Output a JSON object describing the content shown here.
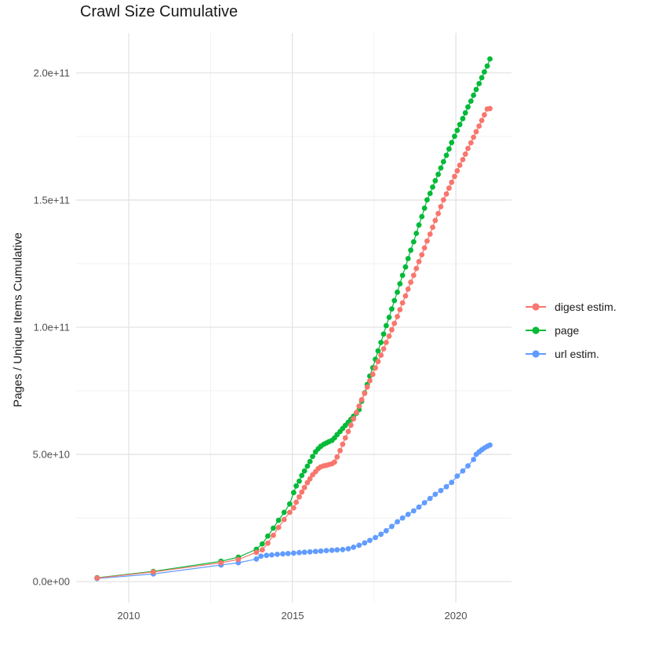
{
  "title": "Crawl Size Cumulative",
  "y_axis": {
    "title": "Pages / Unique Items Cumulative",
    "tick_labels": [
      "0.0e+00",
      "5.0e+10",
      "1.0e+11",
      "1.5e+11",
      "2.0e+11"
    ],
    "tick_values_e9": [
      0,
      50,
      100,
      150,
      200
    ],
    "minor_values_e9": [
      25,
      75,
      125,
      175
    ],
    "range_e9": [
      -8.3,
      215.7
    ]
  },
  "x_axis": {
    "tick_labels": [
      "2010",
      "2015",
      "2020"
    ],
    "tick_values": [
      2010,
      2015,
      2020
    ],
    "minor_values": [
      2012.5,
      2017.5
    ],
    "range": [
      2008.39,
      2021.7
    ]
  },
  "legend": {
    "items": [
      {
        "label": "digest estim.",
        "color": "#F8766D",
        "series": "digest estim."
      },
      {
        "label": "page",
        "color": "#00BA38",
        "series": "page"
      },
      {
        "label": "url estim.",
        "color": "#619CFF",
        "series": "url estim."
      }
    ]
  },
  "colors": {
    "digest": "#F8766D",
    "page": "#00BA38",
    "url": "#619CFF",
    "grid_major": "#e4e4e4",
    "grid_minor": "#f1f1f1",
    "tick_text": "#4d4d4d",
    "title_text": "#1a1a1a"
  },
  "chart_data": {
    "type": "line",
    "title": "Crawl Size Cumulative",
    "xlabel": "",
    "ylabel": "Pages / Unique Items Cumulative",
    "x_unit": "year",
    "y_unit_multiplier": 1000000000.0,
    "y_unit_note": "values in billions (1e9) of pages / unique items, cumulative",
    "xlim": [
      2008.39,
      2021.7
    ],
    "ylim_e9": [
      -8.3,
      215.7
    ],
    "grid": true,
    "legend_position": "right",
    "series": [
      {
        "name": "page",
        "color": "#00BA38",
        "points": [
          [
            2009.03,
            1.5
          ],
          [
            2010.75,
            4.0
          ],
          [
            2012.82,
            8.0
          ],
          [
            2013.35,
            9.6
          ],
          [
            2013.9,
            12.7
          ],
          [
            2014.08,
            14.8
          ],
          [
            2014.25,
            17.9
          ],
          [
            2014.42,
            21.0
          ],
          [
            2014.58,
            24.1
          ],
          [
            2014.75,
            27.2
          ],
          [
            2014.92,
            30.5
          ],
          [
            2015.04,
            35.0
          ],
          [
            2015.12,
            37.6
          ],
          [
            2015.21,
            39.5
          ],
          [
            2015.29,
            41.7
          ],
          [
            2015.37,
            43.5
          ],
          [
            2015.46,
            45.4
          ],
          [
            2015.54,
            47.2
          ],
          [
            2015.62,
            49.2
          ],
          [
            2015.71,
            51.0
          ],
          [
            2015.79,
            52.2
          ],
          [
            2015.87,
            53.2
          ],
          [
            2015.96,
            54.0
          ],
          [
            2016.04,
            54.5
          ],
          [
            2016.12,
            55.0
          ],
          [
            2016.21,
            55.5
          ],
          [
            2016.29,
            56.5
          ],
          [
            2016.37,
            57.8
          ],
          [
            2016.46,
            59.0
          ],
          [
            2016.54,
            60.2
          ],
          [
            2016.62,
            61.4
          ],
          [
            2016.71,
            62.6
          ],
          [
            2016.79,
            63.8
          ],
          [
            2016.87,
            65.0
          ],
          [
            2016.96,
            66.2
          ],
          [
            2017.04,
            67.6
          ],
          [
            2017.12,
            70.9
          ],
          [
            2017.21,
            74.2
          ],
          [
            2017.29,
            77.5
          ],
          [
            2017.37,
            80.8
          ],
          [
            2017.46,
            84.1
          ],
          [
            2017.54,
            87.4
          ],
          [
            2017.62,
            90.7
          ],
          [
            2017.71,
            94.0
          ],
          [
            2017.79,
            97.3
          ],
          [
            2017.87,
            100.6
          ],
          [
            2017.96,
            103.9
          ],
          [
            2018.04,
            107.2
          ],
          [
            2018.12,
            110.5
          ],
          [
            2018.21,
            113.8
          ],
          [
            2018.29,
            117.1
          ],
          [
            2018.37,
            120.4
          ],
          [
            2018.46,
            123.7
          ],
          [
            2018.54,
            127.0
          ],
          [
            2018.62,
            130.3
          ],
          [
            2018.71,
            133.6
          ],
          [
            2018.79,
            136.9
          ],
          [
            2018.87,
            140.2
          ],
          [
            2018.96,
            143.5
          ],
          [
            2019.04,
            146.8
          ],
          [
            2019.12,
            150.1
          ],
          [
            2019.21,
            152.6
          ],
          [
            2019.29,
            155.1
          ],
          [
            2019.37,
            157.6
          ],
          [
            2019.46,
            160.1
          ],
          [
            2019.54,
            162.6
          ],
          [
            2019.62,
            165.1
          ],
          [
            2019.71,
            167.6
          ],
          [
            2019.79,
            170.1
          ],
          [
            2019.87,
            172.6
          ],
          [
            2019.96,
            175.1
          ],
          [
            2020.04,
            177.4
          ],
          [
            2020.12,
            179.7
          ],
          [
            2020.21,
            182.0
          ],
          [
            2020.29,
            184.3
          ],
          [
            2020.37,
            186.6
          ],
          [
            2020.46,
            188.9
          ],
          [
            2020.54,
            191.2
          ],
          [
            2020.62,
            193.5
          ],
          [
            2020.71,
            195.8
          ],
          [
            2020.79,
            198.1
          ],
          [
            2020.87,
            200.4
          ],
          [
            2020.96,
            202.7
          ],
          [
            2021.04,
            205.5
          ]
        ]
      },
      {
        "name": "url estim.",
        "color": "#619CFF",
        "points": [
          [
            2009.03,
            1.2
          ],
          [
            2010.75,
            3.0
          ],
          [
            2012.82,
            6.5
          ],
          [
            2013.35,
            7.4
          ],
          [
            2013.9,
            8.9
          ],
          [
            2014.04,
            10.0
          ],
          [
            2014.21,
            10.3
          ],
          [
            2014.37,
            10.5
          ],
          [
            2014.54,
            10.7
          ],
          [
            2014.71,
            10.9
          ],
          [
            2014.87,
            11.0
          ],
          [
            2015.04,
            11.2
          ],
          [
            2015.21,
            11.4
          ],
          [
            2015.37,
            11.55
          ],
          [
            2015.54,
            11.7
          ],
          [
            2015.71,
            11.85
          ],
          [
            2015.87,
            12.0
          ],
          [
            2016.04,
            12.2
          ],
          [
            2016.21,
            12.3
          ],
          [
            2016.37,
            12.45
          ],
          [
            2016.54,
            12.6
          ],
          [
            2016.71,
            12.9
          ],
          [
            2016.87,
            13.5
          ],
          [
            2017.04,
            14.3
          ],
          [
            2017.21,
            15.2
          ],
          [
            2017.37,
            16.2
          ],
          [
            2017.54,
            17.3
          ],
          [
            2017.71,
            18.6
          ],
          [
            2017.87,
            20.0
          ],
          [
            2018.04,
            21.7
          ],
          [
            2018.21,
            23.5
          ],
          [
            2018.37,
            25.0
          ],
          [
            2018.54,
            26.4
          ],
          [
            2018.71,
            27.8
          ],
          [
            2018.87,
            29.3
          ],
          [
            2019.04,
            31.0
          ],
          [
            2019.21,
            32.7
          ],
          [
            2019.37,
            34.3
          ],
          [
            2019.54,
            35.8
          ],
          [
            2019.71,
            37.3
          ],
          [
            2019.87,
            39.0
          ],
          [
            2020.04,
            41.5
          ],
          [
            2020.21,
            43.5
          ],
          [
            2020.37,
            45.5
          ],
          [
            2020.54,
            48.0
          ],
          [
            2020.62,
            50.0
          ],
          [
            2020.71,
            51.0
          ],
          [
            2020.79,
            51.8
          ],
          [
            2020.87,
            52.5
          ],
          [
            2020.96,
            53.2
          ],
          [
            2021.04,
            53.7
          ]
        ]
      },
      {
        "name": "digest estim.",
        "color": "#F8766D",
        "points": [
          [
            2009.03,
            1.4
          ],
          [
            2010.75,
            3.8
          ],
          [
            2012.82,
            7.4
          ],
          [
            2013.35,
            8.7
          ],
          [
            2013.9,
            11.5
          ],
          [
            2014.08,
            12.5
          ],
          [
            2014.25,
            15.1
          ],
          [
            2014.42,
            18.2
          ],
          [
            2014.58,
            21.3
          ],
          [
            2014.75,
            24.4
          ],
          [
            2014.92,
            27.2
          ],
          [
            2015.04,
            29.0
          ],
          [
            2015.12,
            31.2
          ],
          [
            2015.21,
            33.3
          ],
          [
            2015.29,
            35.2
          ],
          [
            2015.37,
            37.0
          ],
          [
            2015.46,
            38.9
          ],
          [
            2015.54,
            40.4
          ],
          [
            2015.62,
            42.0
          ],
          [
            2015.71,
            43.2
          ],
          [
            2015.79,
            44.4
          ],
          [
            2015.87,
            45.1
          ],
          [
            2015.96,
            45.5
          ],
          [
            2016.04,
            45.7
          ],
          [
            2016.12,
            46.0
          ],
          [
            2016.21,
            46.3
          ],
          [
            2016.29,
            47.0
          ],
          [
            2016.37,
            49.0
          ],
          [
            2016.46,
            51.5
          ],
          [
            2016.54,
            54.0
          ],
          [
            2016.62,
            56.5
          ],
          [
            2016.71,
            59.0
          ],
          [
            2016.79,
            61.5
          ],
          [
            2016.87,
            64.0
          ],
          [
            2016.96,
            66.5
          ],
          [
            2017.04,
            69.0
          ],
          [
            2017.12,
            71.5
          ],
          [
            2017.21,
            74.0
          ],
          [
            2017.29,
            76.5
          ],
          [
            2017.37,
            79.0
          ],
          [
            2017.46,
            81.5
          ],
          [
            2017.54,
            84.0
          ],
          [
            2017.62,
            86.5
          ],
          [
            2017.71,
            89.0
          ],
          [
            2017.79,
            91.5
          ],
          [
            2017.87,
            94.0
          ],
          [
            2017.96,
            96.5
          ],
          [
            2018.04,
            99.0
          ],
          [
            2018.12,
            101.5
          ],
          [
            2018.21,
            104.2
          ],
          [
            2018.29,
            106.9
          ],
          [
            2018.37,
            109.6
          ],
          [
            2018.46,
            112.3
          ],
          [
            2018.54,
            115.0
          ],
          [
            2018.62,
            117.7
          ],
          [
            2018.71,
            120.4
          ],
          [
            2018.79,
            123.1
          ],
          [
            2018.87,
            125.8
          ],
          [
            2018.96,
            128.5
          ],
          [
            2019.04,
            131.2
          ],
          [
            2019.12,
            133.9
          ],
          [
            2019.21,
            136.6
          ],
          [
            2019.29,
            139.3
          ],
          [
            2019.37,
            142.0
          ],
          [
            2019.46,
            144.7
          ],
          [
            2019.54,
            147.4
          ],
          [
            2019.62,
            150.1
          ],
          [
            2019.71,
            152.4
          ],
          [
            2019.79,
            154.7
          ],
          [
            2019.87,
            157.0
          ],
          [
            2019.96,
            159.3
          ],
          [
            2020.04,
            161.5
          ],
          [
            2020.12,
            163.7
          ],
          [
            2020.21,
            165.9
          ],
          [
            2020.29,
            168.1
          ],
          [
            2020.37,
            170.3
          ],
          [
            2020.46,
            172.5
          ],
          [
            2020.54,
            174.7
          ],
          [
            2020.62,
            176.9
          ],
          [
            2020.71,
            179.1
          ],
          [
            2020.79,
            181.3
          ],
          [
            2020.87,
            183.5
          ],
          [
            2020.96,
            185.8
          ],
          [
            2021.04,
            186.0
          ]
        ]
      }
    ]
  }
}
